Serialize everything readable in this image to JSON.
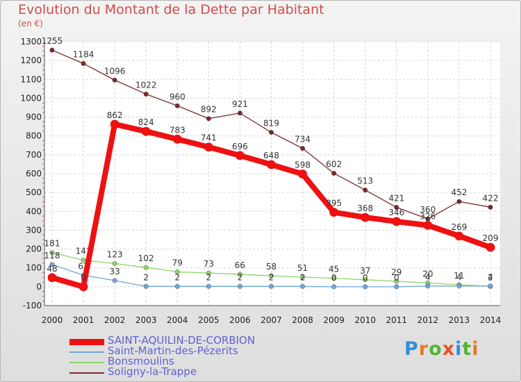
{
  "chart_data": {
    "type": "line",
    "title": "Evolution du Montant de la Dette par Habitant",
    "ylabel": "(en €)",
    "ylim": [
      -100,
      1300
    ],
    "yticks": [
      "-100",
      "0",
      "100",
      "200",
      "300",
      "400",
      "500",
      "600",
      "700",
      "800",
      "900",
      "1000",
      "1100",
      "1200",
      "1300"
    ],
    "categories": [
      "2000",
      "2001",
      "2002",
      "2003",
      "2004",
      "2005",
      "2006",
      "2007",
      "2008",
      "2009",
      "2010",
      "2011",
      "2012",
      "2013",
      "2014"
    ],
    "series": [
      {
        "name": "Soligny-la-Trappe",
        "color": "#7a2a2a",
        "values": [
          1255,
          1184,
          1096,
          1022,
          960,
          892,
          921,
          819,
          734,
          602,
          513,
          421,
          360,
          452,
          422
        ],
        "labels": [
          "1255",
          "1184",
          "1096",
          "1022",
          "960",
          "892",
          "921",
          "819",
          "734",
          "602",
          "513",
          "421",
          "360",
          "452",
          "422"
        ]
      },
      {
        "name": "Bonsmoulins",
        "color": "#8fd46a",
        "values": [
          181,
          141,
          123,
          102,
          79,
          73,
          66,
          58,
          51,
          45,
          37,
          29,
          20,
          11,
          2
        ],
        "labels": [
          "181",
          "141",
          "123",
          "102",
          "79",
          "73",
          "66",
          "58",
          "51",
          "45",
          "37",
          "29",
          "20",
          "11",
          "2"
        ]
      },
      {
        "name": "Saint-Martin-des-Pézerits",
        "color": "#6fa8dc",
        "values": [
          118,
          61,
          33,
          2,
          2,
          2,
          2,
          2,
          2,
          0,
          0,
          0,
          4,
          4,
          4
        ],
        "labels": [
          "118",
          "61",
          "33",
          "2",
          "2",
          "2",
          "2",
          "2",
          "2",
          "0",
          "0",
          "0",
          "4",
          "4",
          "4"
        ]
      },
      {
        "name": "SAINT-AQUILIN-DE-CORBION",
        "color": "#ee1111",
        "values": [
          48,
          0,
          862,
          824,
          783,
          741,
          696,
          648,
          598,
          395,
          368,
          346,
          326,
          269,
          209
        ],
        "labels": [
          "48",
          "0",
          "862",
          "824",
          "783",
          "741",
          "696",
          "648",
          "598",
          "395",
          "368",
          "346",
          "326",
          "269",
          "209"
        ]
      }
    ],
    "legend": {
      "items": [
        {
          "label": "SAINT-AQUILIN-DE-CORBION",
          "color": "#ee1111"
        },
        {
          "label": "Saint-Martin-des-Pézerits",
          "color": "#6fa8dc"
        },
        {
          "label": "Bonsmoulins",
          "color": "#8fd46a"
        },
        {
          "label": "Soligny-la-Trappe",
          "color": "#7a2a2a"
        }
      ]
    }
  },
  "logo": {
    "text": "Proxiti"
  }
}
